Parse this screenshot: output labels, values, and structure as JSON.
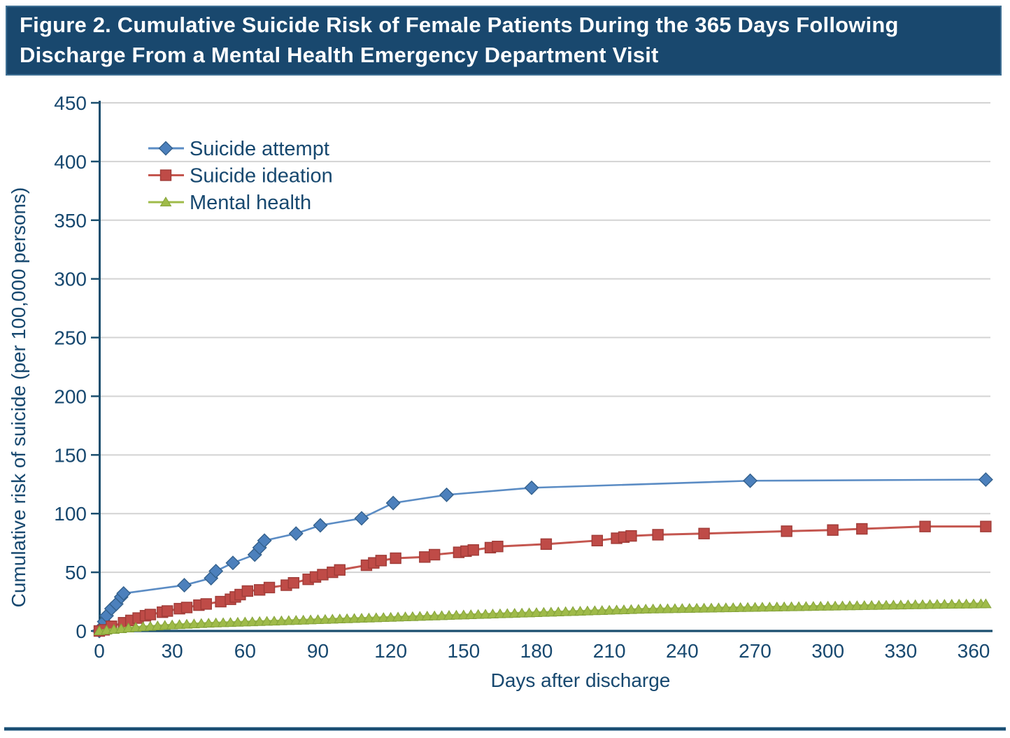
{
  "figure": {
    "title": "Figure 2. Cumulative Suicide Risk of Female Patients During the 365 Days Following Discharge From a Mental Health Emergency Department Visit"
  },
  "colors": {
    "title_bar_bg": "#19486E",
    "title_bar_border": "#3F7094",
    "title_text": "#FFFFFF",
    "axis_text": "#17486F",
    "axis_line": "#1A4E6E",
    "gridline": "#D3D3D3",
    "bottom_rule": "#1A4E73"
  },
  "chart_data": {
    "type": "line",
    "title": "",
    "xlabel": "Days after discharge",
    "ylabel": "Cumulative risk of suicide (per 100,000 persons)",
    "xlim": [
      0,
      365
    ],
    "ylim": [
      0,
      450
    ],
    "x_ticks": [
      0,
      30,
      60,
      90,
      120,
      150,
      180,
      210,
      240,
      270,
      300,
      330,
      360
    ],
    "y_ticks": [
      0,
      50,
      100,
      150,
      200,
      250,
      300,
      350,
      400,
      450
    ],
    "grid": "horizontal gray lines at each y tick",
    "legend": {
      "position": "upper-left-inside",
      "entries": [
        "Suicide attempt",
        "Suicide ideation",
        "Mental health"
      ]
    },
    "series": [
      {
        "name": "Suicide attempt",
        "marker": "diamond",
        "color": "#4C80BC",
        "line_color": "#5B8CC4",
        "edge_color": "#33608C",
        "points": [
          [
            0,
            0
          ],
          [
            1,
            3
          ],
          [
            2,
            8
          ],
          [
            3,
            13
          ],
          [
            5,
            19
          ],
          [
            7,
            23
          ],
          [
            9,
            29
          ],
          [
            10,
            32
          ],
          [
            35,
            39
          ],
          [
            46,
            45
          ],
          [
            48,
            51
          ],
          [
            55,
            58
          ],
          [
            64,
            65
          ],
          [
            66,
            71
          ],
          [
            68,
            77
          ],
          [
            81,
            83
          ],
          [
            91,
            90
          ],
          [
            108,
            96
          ],
          [
            121,
            109
          ],
          [
            143,
            116
          ],
          [
            178,
            122
          ],
          [
            268,
            128
          ],
          [
            365,
            129
          ]
        ]
      },
      {
        "name": "Suicide ideation",
        "marker": "square",
        "color": "#BF4B47",
        "line_color": "#C4564F",
        "edge_color": "#A03C38",
        "points": [
          [
            0,
            0
          ],
          [
            2,
            1
          ],
          [
            5,
            4
          ],
          [
            10,
            7
          ],
          [
            13,
            9
          ],
          [
            16,
            11
          ],
          [
            19,
            13
          ],
          [
            21,
            14
          ],
          [
            26,
            16
          ],
          [
            28,
            17
          ],
          [
            33,
            19
          ],
          [
            36,
            20
          ],
          [
            41,
            22
          ],
          [
            44,
            23
          ],
          [
            50,
            25
          ],
          [
            54,
            27
          ],
          [
            56,
            29
          ],
          [
            58,
            31
          ],
          [
            61,
            34
          ],
          [
            66,
            35
          ],
          [
            70,
            37
          ],
          [
            77,
            39
          ],
          [
            80,
            41
          ],
          [
            86,
            44
          ],
          [
            89,
            46
          ],
          [
            92,
            48
          ],
          [
            96,
            50
          ],
          [
            99,
            52
          ],
          [
            110,
            56
          ],
          [
            113,
            58
          ],
          [
            116,
            60
          ],
          [
            122,
            62
          ],
          [
            134,
            63
          ],
          [
            138,
            65
          ],
          [
            148,
            67
          ],
          [
            151,
            68
          ],
          [
            154,
            69
          ],
          [
            161,
            71
          ],
          [
            164,
            72
          ],
          [
            184,
            74
          ],
          [
            205,
            77
          ],
          [
            213,
            79
          ],
          [
            216,
            80
          ],
          [
            219,
            81
          ],
          [
            230,
            82
          ],
          [
            249,
            83
          ],
          [
            283,
            85
          ],
          [
            302,
            86
          ],
          [
            314,
            87
          ],
          [
            340,
            89
          ],
          [
            365,
            89
          ]
        ]
      },
      {
        "name": "Mental health",
        "marker": "triangle",
        "color": "#9FBB49",
        "line_color": "#9FBB49",
        "edge_color": "#85A33B",
        "marker_interval_days": 3,
        "points": [
          [
            0,
            0
          ],
          [
            15,
            3
          ],
          [
            30,
            5
          ],
          [
            45,
            6.5
          ],
          [
            60,
            7.5
          ],
          [
            75,
            8.5
          ],
          [
            90,
            9.5
          ],
          [
            105,
            10.5
          ],
          [
            120,
            11.5
          ],
          [
            135,
            12.5
          ],
          [
            150,
            13.5
          ],
          [
            165,
            14.5
          ],
          [
            180,
            15.5
          ],
          [
            195,
            16.5
          ],
          [
            210,
            17.5
          ],
          [
            225,
            18.5
          ],
          [
            240,
            19
          ],
          [
            255,
            19.5
          ],
          [
            270,
            20
          ],
          [
            285,
            20.5
          ],
          [
            300,
            21
          ],
          [
            315,
            21.5
          ],
          [
            330,
            22
          ],
          [
            345,
            22.5
          ],
          [
            365,
            23
          ]
        ]
      }
    ]
  }
}
